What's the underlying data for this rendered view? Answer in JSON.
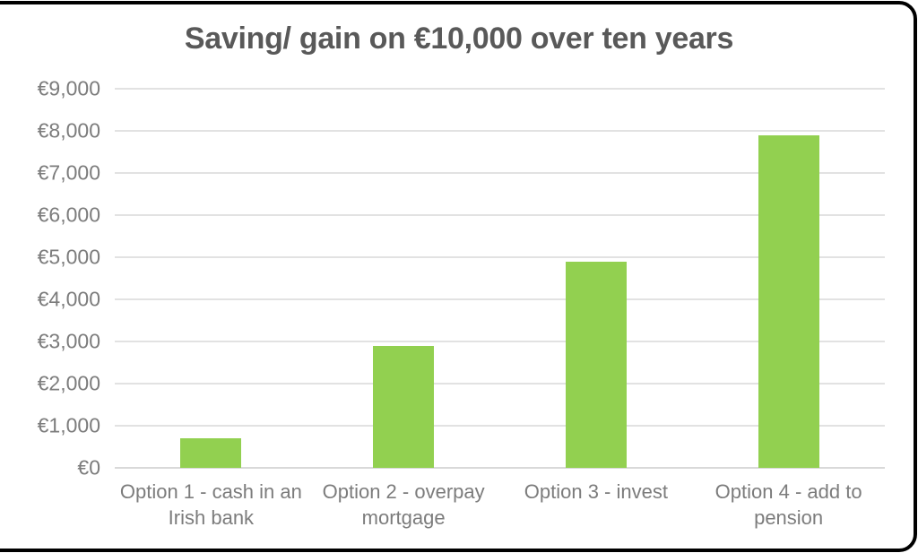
{
  "chart_data": {
    "type": "bar",
    "title": "Saving/ gain on €10,000 over ten years",
    "categories": [
      "Option 1 - cash in an Irish bank",
      "Option 2 - overpay mortgage",
      "Option 3 - invest",
      "Option 4 - add to pension"
    ],
    "values": [
      700,
      2900,
      4900,
      7900
    ],
    "ylim": [
      0,
      9000
    ],
    "ytick_step": 1000,
    "ytick_labels": [
      "€0",
      "€1,000",
      "€2,000",
      "€3,000",
      "€4,000",
      "€5,000",
      "€6,000",
      "€7,000",
      "€8,000",
      "€9,000"
    ],
    "xlabel": "",
    "ylabel": "",
    "grid": true,
    "legend": false,
    "colors": {
      "bar": "#92D050",
      "gridline": "#E2E2E2",
      "baseline": "#D9D9D9",
      "title": "#595959",
      "axis_label": "#7C7C7C",
      "frame_border": "#000000",
      "background": "#FFFFFF"
    }
  }
}
